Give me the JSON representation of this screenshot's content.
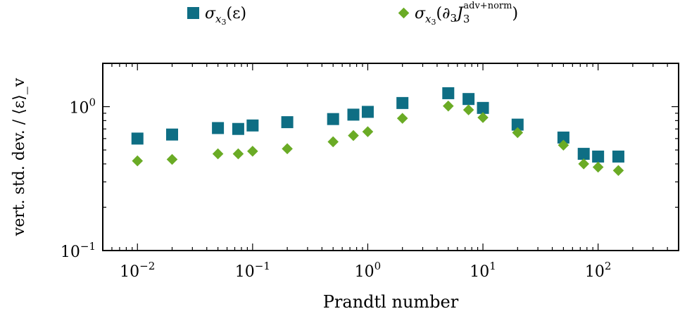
{
  "chart_data": {
    "type": "scatter",
    "x_scale": "log",
    "y_scale": "log",
    "xlim": [
      0.005,
      500
    ],
    "ylim": [
      0.1,
      2.0
    ],
    "xlabel": "Prandtl number",
    "ylabel": "vert. std. dev. / ⟨ε⟩_v",
    "x_ticks": [
      {
        "value": 0.01,
        "base": "10",
        "exp": "−2"
      },
      {
        "value": 0.1,
        "base": "10",
        "exp": "−1"
      },
      {
        "value": 1,
        "base": "10",
        "exp": "0"
      },
      {
        "value": 10,
        "base": "10",
        "exp": "1"
      },
      {
        "value": 100,
        "base": "10",
        "exp": "2"
      }
    ],
    "y_ticks": [
      {
        "value": 0.1,
        "base": "10",
        "exp": "−1"
      },
      {
        "value": 1,
        "base": "10",
        "exp": "0"
      }
    ],
    "legend_position": "top",
    "grid": false,
    "series": [
      {
        "name": "σ_x3(ε)",
        "legend_parts": {
          "main": "σ",
          "sub": "x",
          "subsub": "3",
          "rest": "(ε)"
        },
        "marker": "square",
        "color": "#0e6e84",
        "points": [
          [
            0.01,
            0.6
          ],
          [
            0.02,
            0.64
          ],
          [
            0.05,
            0.71
          ],
          [
            0.075,
            0.7
          ],
          [
            0.1,
            0.74
          ],
          [
            0.2,
            0.78
          ],
          [
            0.5,
            0.82
          ],
          [
            0.75,
            0.88
          ],
          [
            1.0,
            0.92
          ],
          [
            2.0,
            1.06
          ],
          [
            5.0,
            1.24
          ],
          [
            7.5,
            1.13
          ],
          [
            10,
            0.98
          ],
          [
            20,
            0.75
          ],
          [
            50,
            0.61
          ],
          [
            75,
            0.47
          ],
          [
            100,
            0.45
          ],
          [
            150,
            0.45
          ]
        ]
      },
      {
        "name": "σ_x3(∂3 J3^adv+norm)",
        "legend_parts": {
          "main": "σ",
          "sub": "x",
          "subsub": "3",
          "open": "(∂",
          "d_sub": "3",
          "J": "J",
          "J_sub": "3",
          "J_sup": "adv+norm",
          "close": ")"
        },
        "marker": "diamond",
        "color": "#6aab25",
        "points": [
          [
            0.01,
            0.42
          ],
          [
            0.02,
            0.43
          ],
          [
            0.05,
            0.47
          ],
          [
            0.075,
            0.47
          ],
          [
            0.1,
            0.49
          ],
          [
            0.2,
            0.51
          ],
          [
            0.5,
            0.57
          ],
          [
            0.75,
            0.63
          ],
          [
            1.0,
            0.67
          ],
          [
            2.0,
            0.83
          ],
          [
            5.0,
            1.01
          ],
          [
            7.5,
            0.95
          ],
          [
            10,
            0.84
          ],
          [
            20,
            0.66
          ],
          [
            50,
            0.54
          ],
          [
            75,
            0.4
          ],
          [
            100,
            0.38
          ],
          [
            150,
            0.36
          ]
        ]
      }
    ]
  }
}
